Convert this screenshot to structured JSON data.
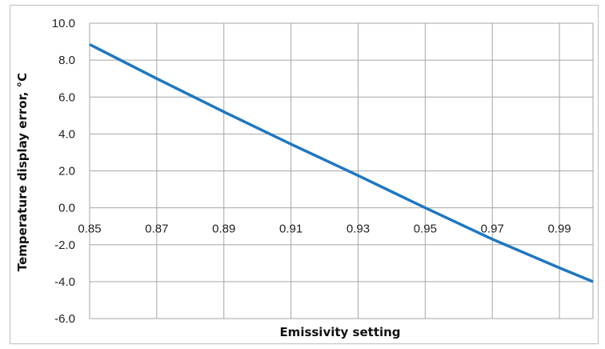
{
  "chart_data": {
    "type": "line",
    "title": "",
    "xlabel": "Emissivity setting",
    "ylabel": "Temperature display error, °C",
    "xlim": [
      0.85,
      1.0
    ],
    "ylim": [
      -6.0,
      10.0
    ],
    "xticks": [
      "0.85",
      "0.87",
      "0.89",
      "0.91",
      "0.93",
      "0.95",
      "0.97",
      "0.99"
    ],
    "yticks": [
      "10.0",
      "8.0",
      "6.0",
      "4.0",
      "2.0",
      "0.0",
      "-2.0",
      "-4.0",
      "-6.0"
    ],
    "grid": true,
    "legend": "none",
    "series": [
      {
        "color": "#1f77c0",
        "x": [
          0.85,
          0.87,
          0.89,
          0.91,
          0.93,
          0.95,
          0.97,
          0.99,
          1.0
        ],
        "y": [
          8.85,
          7.0,
          5.2,
          3.45,
          1.75,
          0.0,
          -1.7,
          -3.25,
          -4.0
        ]
      }
    ]
  }
}
